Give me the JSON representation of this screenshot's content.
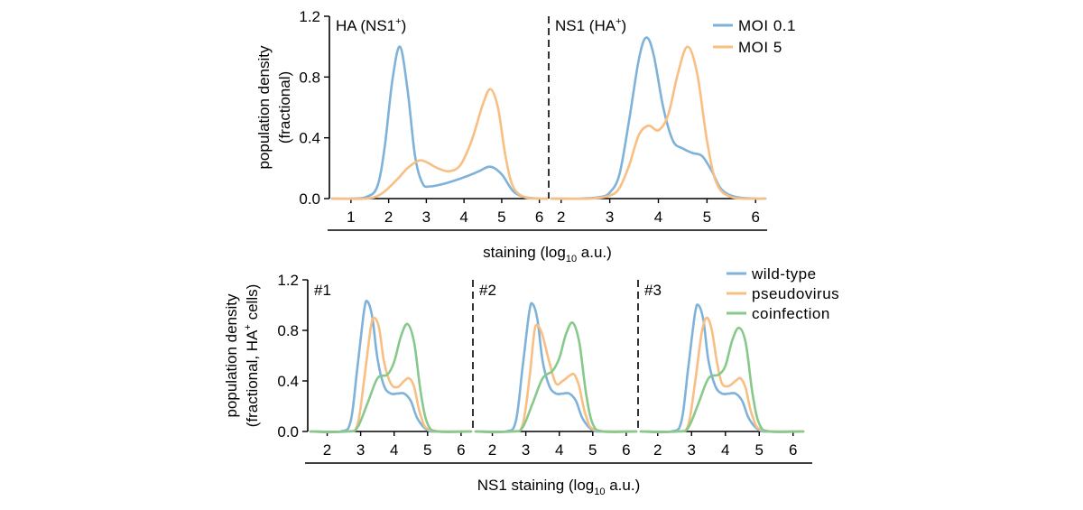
{
  "chart_data": [
    {
      "type": "line",
      "ylabel_lines": [
        "population density",
        "(fractional)"
      ],
      "xlabel": {
        "prefix": "staining (log",
        "sub": "10",
        "suffix": " a.u.)"
      },
      "ylim": [
        0,
        1.2
      ],
      "yticks": [
        "0.0",
        "0.4",
        "0.8",
        "1.2"
      ],
      "legend": {
        "placement": "top-right",
        "entries": [
          "MOI 0.1",
          "MOI 5"
        ]
      },
      "colors": {
        "MOI 0.1": "#7fb2d9",
        "MOI 5": "#f8be82"
      },
      "panels": [
        {
          "label": {
            "main": "HA (NS1",
            "sup": "+",
            "end": ")"
          },
          "xlim": [
            0.5,
            6.2
          ],
          "xticks": [
            "1",
            "2",
            "3",
            "4",
            "5",
            "6"
          ],
          "series": [
            {
              "name": "MOI 0.1",
              "x": [
                0.5,
                1.0,
                1.4,
                1.7,
                1.9,
                2.1,
                2.3,
                2.5,
                2.7,
                2.9,
                3.1,
                3.5,
                4.0,
                4.4,
                4.7,
                5.0,
                5.3,
                5.6,
                6.0,
                6.2
              ],
              "y": [
                0.0,
                0.0,
                0.01,
                0.08,
                0.35,
                0.78,
                1.0,
                0.72,
                0.28,
                0.1,
                0.08,
                0.1,
                0.14,
                0.18,
                0.21,
                0.16,
                0.05,
                0.01,
                0.0,
                0.0
              ]
            },
            {
              "name": "MOI 5",
              "x": [
                0.5,
                1.4,
                1.8,
                2.2,
                2.5,
                2.8,
                3.0,
                3.3,
                3.6,
                3.9,
                4.2,
                4.5,
                4.7,
                4.9,
                5.1,
                5.3,
                5.6,
                6.0,
                6.2
              ],
              "y": [
                0.0,
                0.0,
                0.03,
                0.12,
                0.2,
                0.25,
                0.24,
                0.2,
                0.18,
                0.22,
                0.38,
                0.62,
                0.72,
                0.6,
                0.28,
                0.08,
                0.01,
                0.0,
                0.0
              ]
            }
          ]
        },
        {
          "label": {
            "main": "NS1 (HA",
            "sup": "+",
            "end": ")"
          },
          "xlim": [
            1.8,
            6.2
          ],
          "xticks": [
            "2",
            "3",
            "4",
            "5",
            "6"
          ],
          "series": [
            {
              "name": "MOI 0.1",
              "x": [
                1.8,
                2.4,
                2.8,
                3.0,
                3.2,
                3.4,
                3.6,
                3.75,
                3.9,
                4.1,
                4.3,
                4.5,
                4.7,
                4.9,
                5.1,
                5.3,
                5.6,
                6.0,
                6.2
              ],
              "y": [
                0.0,
                0.0,
                0.01,
                0.04,
                0.16,
                0.52,
                0.92,
                1.06,
                0.95,
                0.6,
                0.38,
                0.33,
                0.3,
                0.28,
                0.18,
                0.06,
                0.01,
                0.0,
                0.0
              ]
            },
            {
              "name": "MOI 5",
              "x": [
                1.8,
                2.6,
                3.0,
                3.2,
                3.4,
                3.6,
                3.8,
                4.0,
                4.2,
                4.4,
                4.6,
                4.8,
                5.0,
                5.2,
                5.5,
                6.0,
                6.2
              ],
              "y": [
                0.0,
                0.0,
                0.02,
                0.07,
                0.22,
                0.42,
                0.48,
                0.45,
                0.55,
                0.82,
                1.0,
                0.82,
                0.38,
                0.1,
                0.01,
                0.0,
                0.0
              ]
            }
          ]
        }
      ]
    },
    {
      "type": "line",
      "ylabel_lines": [
        "population density",
        "(fractional, HA",
        "+",
        " cells)"
      ],
      "xlabel": {
        "prefix": "NS1 staining (log",
        "sub": "10",
        "suffix": " a.u.)"
      },
      "ylim": [
        0,
        1.2
      ],
      "yticks": [
        "0.0",
        "0.4",
        "0.8",
        "1.2"
      ],
      "legend": {
        "placement": "top-right",
        "entries": [
          "wild-type",
          "pseudovirus",
          "coinfection"
        ]
      },
      "colors": {
        "wild-type": "#7fb2d9",
        "pseudovirus": "#f8be82",
        "coinfection": "#86c98a"
      },
      "panels": [
        {
          "label": {
            "main": "#1",
            "sup": "",
            "end": ""
          },
          "xlim": [
            1.5,
            6.3
          ],
          "xticks": [
            "2",
            "3",
            "4",
            "5",
            "6"
          ],
          "series": [
            {
              "name": "wild-type",
              "x": [
                1.5,
                2.4,
                2.7,
                2.9,
                3.1,
                3.2,
                3.35,
                3.5,
                3.7,
                3.9,
                4.1,
                4.3,
                4.5,
                4.7,
                5.0,
                5.4,
                6.3
              ],
              "y": [
                0.0,
                0.0,
                0.08,
                0.5,
                0.95,
                1.03,
                0.9,
                0.58,
                0.36,
                0.3,
                0.3,
                0.3,
                0.24,
                0.1,
                0.01,
                0.0,
                0.0
              ]
            },
            {
              "name": "pseudovirus",
              "x": [
                1.5,
                2.6,
                2.9,
                3.1,
                3.3,
                3.4,
                3.55,
                3.7,
                3.9,
                4.1,
                4.3,
                4.45,
                4.6,
                4.8,
                5.1,
                6.3
              ],
              "y": [
                0.0,
                0.0,
                0.05,
                0.4,
                0.82,
                0.9,
                0.82,
                0.55,
                0.38,
                0.35,
                0.4,
                0.42,
                0.35,
                0.12,
                0.01,
                0.0
              ]
            },
            {
              "name": "coinfection",
              "x": [
                1.5,
                2.6,
                2.9,
                3.2,
                3.5,
                3.8,
                4.0,
                4.2,
                4.4,
                4.6,
                4.8,
                5.0,
                5.3,
                6.3
              ],
              "y": [
                0.0,
                0.0,
                0.03,
                0.22,
                0.42,
                0.45,
                0.55,
                0.75,
                0.85,
                0.7,
                0.3,
                0.06,
                0.0,
                0.0
              ]
            }
          ]
        },
        {
          "label": {
            "main": "#2",
            "sup": "",
            "end": ""
          },
          "xlim": [
            1.5,
            6.3
          ],
          "xticks": [
            "2",
            "3",
            "4",
            "5",
            "6"
          ],
          "series": [
            {
              "name": "wild-type",
              "x": [
                1.5,
                2.4,
                2.7,
                2.9,
                3.1,
                3.2,
                3.35,
                3.5,
                3.7,
                3.9,
                4.1,
                4.3,
                4.5,
                4.7,
                5.0,
                5.4,
                6.3
              ],
              "y": [
                0.0,
                0.0,
                0.08,
                0.5,
                0.94,
                1.01,
                0.88,
                0.56,
                0.36,
                0.3,
                0.3,
                0.3,
                0.24,
                0.1,
                0.01,
                0.0,
                0.0
              ]
            },
            {
              "name": "pseudovirus",
              "x": [
                1.5,
                2.6,
                2.9,
                3.1,
                3.25,
                3.35,
                3.5,
                3.7,
                3.9,
                4.1,
                4.3,
                4.45,
                4.6,
                4.8,
                5.1,
                6.3
              ],
              "y": [
                0.0,
                0.0,
                0.05,
                0.4,
                0.78,
                0.84,
                0.76,
                0.55,
                0.38,
                0.4,
                0.44,
                0.45,
                0.35,
                0.12,
                0.01,
                0.0
              ]
            },
            {
              "name": "coinfection",
              "x": [
                1.5,
                2.6,
                2.9,
                3.2,
                3.5,
                3.8,
                4.0,
                4.2,
                4.4,
                4.6,
                4.8,
                5.0,
                5.3,
                6.3
              ],
              "y": [
                0.0,
                0.0,
                0.03,
                0.22,
                0.42,
                0.48,
                0.58,
                0.77,
                0.86,
                0.7,
                0.3,
                0.06,
                0.0,
                0.0
              ]
            }
          ]
        },
        {
          "label": {
            "main": "#3",
            "sup": "",
            "end": ""
          },
          "xlim": [
            1.5,
            6.3
          ],
          "xticks": [
            "2",
            "3",
            "4",
            "5",
            "6"
          ],
          "series": [
            {
              "name": "wild-type",
              "x": [
                1.5,
                2.4,
                2.7,
                2.9,
                3.1,
                3.2,
                3.35,
                3.5,
                3.7,
                3.9,
                4.1,
                4.3,
                4.5,
                4.7,
                5.0,
                5.4,
                6.3
              ],
              "y": [
                0.0,
                0.0,
                0.08,
                0.5,
                0.93,
                1.0,
                0.88,
                0.56,
                0.36,
                0.3,
                0.3,
                0.3,
                0.24,
                0.1,
                0.01,
                0.0,
                0.0
              ]
            },
            {
              "name": "pseudovirus",
              "x": [
                1.5,
                2.6,
                2.9,
                3.1,
                3.3,
                3.45,
                3.6,
                3.75,
                3.9,
                4.1,
                4.3,
                4.45,
                4.6,
                4.8,
                5.1,
                6.3
              ],
              "y": [
                0.0,
                0.0,
                0.05,
                0.38,
                0.78,
                0.9,
                0.8,
                0.55,
                0.38,
                0.36,
                0.4,
                0.42,
                0.34,
                0.12,
                0.01,
                0.0
              ]
            },
            {
              "name": "coinfection",
              "x": [
                1.5,
                2.6,
                2.9,
                3.2,
                3.5,
                3.8,
                4.0,
                4.2,
                4.4,
                4.6,
                4.8,
                5.0,
                5.3,
                6.3
              ],
              "y": [
                0.0,
                0.0,
                0.03,
                0.22,
                0.42,
                0.45,
                0.52,
                0.72,
                0.82,
                0.7,
                0.3,
                0.06,
                0.0,
                0.0
              ]
            }
          ]
        }
      ]
    }
  ]
}
